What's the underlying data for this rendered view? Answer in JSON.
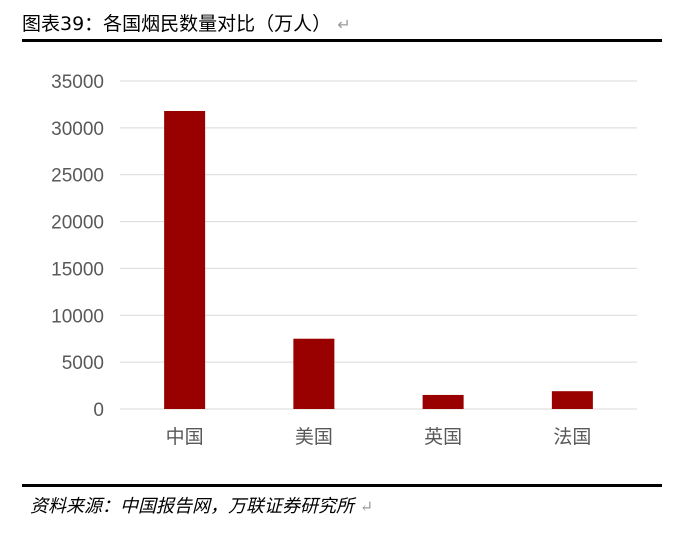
{
  "title": "图表39：各国烟民数量对比（万人）",
  "source": "资料来源：中国报告网，万联证券研究所",
  "return_mark": "↵",
  "colors": {
    "bar": "#990000",
    "grid": "#d9d9d9",
    "text": "#595959"
  },
  "chart_data": {
    "type": "bar",
    "categories": [
      "中国",
      "美国",
      "英国",
      "法国"
    ],
    "values": [
      31800,
      7500,
      1500,
      1900
    ],
    "title": "",
    "xlabel": "",
    "ylabel": "",
    "ylim": [
      0,
      35000
    ],
    "yticks": [
      0,
      5000,
      10000,
      15000,
      20000,
      25000,
      30000,
      35000
    ],
    "grid": true,
    "legend": "none"
  }
}
